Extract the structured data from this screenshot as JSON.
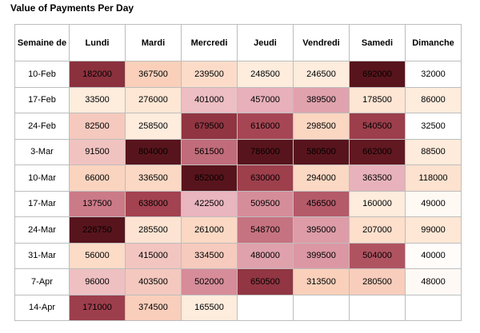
{
  "title": "Value of Payments Per Day",
  "chart_data": {
    "type": "heatmap",
    "title": "Value of Payments Per Day",
    "row_header": "Semaine de",
    "columns": [
      "Lundi",
      "Mardi",
      "Mercredi",
      "Jeudi",
      "Vendredi",
      "Samedi",
      "Dimanche"
    ],
    "rows": [
      "10-Feb",
      "17-Feb",
      "24-Feb",
      "3-Mar",
      "10-Mar",
      "17-Mar",
      "24-Mar",
      "31-Mar",
      "7-Apr",
      "14-Apr"
    ],
    "values": [
      [
        182000,
        367500,
        239500,
        248500,
        246500,
        692000,
        32000
      ],
      [
        33500,
        276000,
        401000,
        457000,
        389500,
        178500,
        86000
      ],
      [
        82500,
        258500,
        679500,
        616000,
        298500,
        540500,
        32500
      ],
      [
        91500,
        804000,
        561500,
        786000,
        580500,
        662000,
        88500
      ],
      [
        66000,
        336500,
        852000,
        630000,
        294000,
        363500,
        118000
      ],
      [
        137500,
        638000,
        422500,
        509500,
        456500,
        160000,
        49000
      ],
      [
        226750,
        285500,
        261000,
        548700,
        395000,
        207000,
        99000
      ],
      [
        56000,
        415000,
        334500,
        480000,
        399500,
        504000,
        40000
      ],
      [
        96000,
        403500,
        502000,
        650500,
        313500,
        280500,
        48000
      ],
      [
        171000,
        374500,
        165500,
        null,
        null,
        null,
        null
      ]
    ],
    "color_scale": "per-column color scale from light peach (low) through light pink to dark maroon (high); Dimanche column mostly white/very light"
  }
}
